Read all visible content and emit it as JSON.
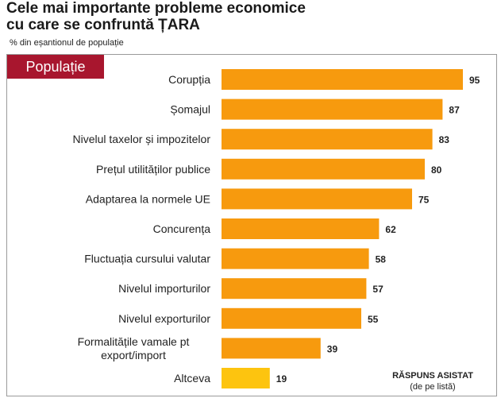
{
  "header": {
    "title_line1": "Cele mai importante probleme economice",
    "title_line2": "cu care se confruntă ȚARA",
    "subtitle": "% din eșantionul de populație"
  },
  "panel": {
    "badge": "Populație",
    "note_line1": "RĂSPUNS ASISTAT",
    "note_line2": "(de pe listă)"
  },
  "colors": {
    "bar": "#f79a0e",
    "bar_other": "#fdc40f",
    "badge": "#a8162e"
  },
  "chart_data": {
    "type": "bar",
    "orientation": "horizontal",
    "title": "Cele mai importante probleme economice cu care se confruntă ȚARA",
    "subtitle": "% din eșantionul de populație",
    "categories": [
      [
        "Corupția"
      ],
      [
        "Șomajul"
      ],
      [
        "Nivelul taxelor și impozitelor"
      ],
      [
        "Prețul utilităților publice"
      ],
      [
        "Adaptarea la normele UE"
      ],
      [
        "Concurența"
      ],
      [
        "Fluctuația cursului valutar"
      ],
      [
        "Nivelul importurilor"
      ],
      [
        "Nivelul exporturilor"
      ],
      [
        "Formalitățile vamale pt",
        "export/import"
      ],
      [
        "Altceva"
      ]
    ],
    "values": [
      95,
      87,
      83,
      80,
      75,
      62,
      58,
      57,
      55,
      39,
      19
    ],
    "highlight_last": true,
    "xlim": [
      0,
      100
    ],
    "grid": false
  }
}
